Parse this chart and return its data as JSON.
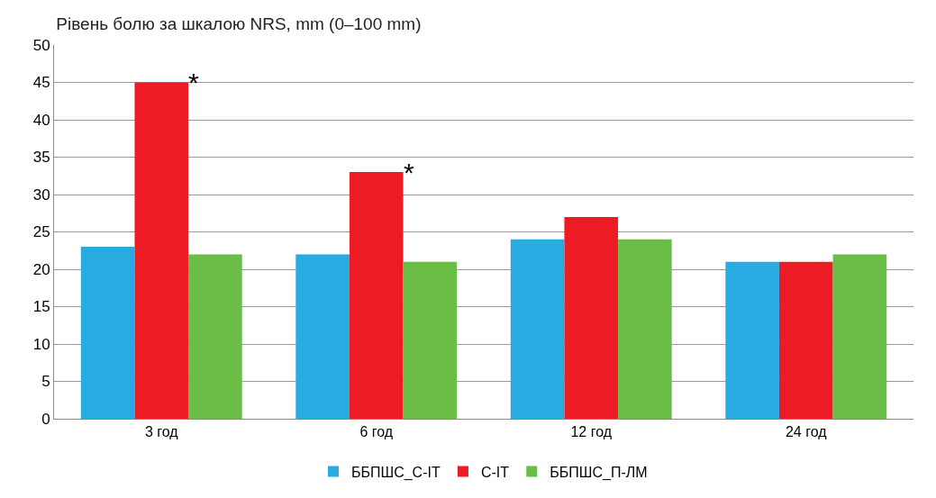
{
  "chart_data": {
    "type": "bar",
    "title": "Рівень болю за шкалою NRS, mm (0–100 mm)",
    "categories": [
      "3 год",
      "6 год",
      "12 год",
      "24 год"
    ],
    "series": [
      {
        "name": "ББПШС_С-ІТ",
        "color": "#29abe2",
        "values": [
          23,
          22,
          24,
          21
        ]
      },
      {
        "name": "С-ІТ",
        "color": "#ed1c24",
        "values": [
          45,
          33,
          27,
          21
        ]
      },
      {
        "name": "ББПШС_П-ЛМ",
        "color": "#6abd45",
        "values": [
          22,
          21,
          24,
          22
        ]
      }
    ],
    "ylim": [
      0,
      50
    ],
    "yticks": [
      0,
      5,
      10,
      15,
      20,
      25,
      30,
      35,
      40,
      45,
      50
    ],
    "grid": "y",
    "legend": "bottom",
    "annotations": [
      {
        "text": "*",
        "x": "3 год",
        "y": 45
      },
      {
        "text": "*",
        "x": "6 год",
        "y": 33
      }
    ]
  }
}
